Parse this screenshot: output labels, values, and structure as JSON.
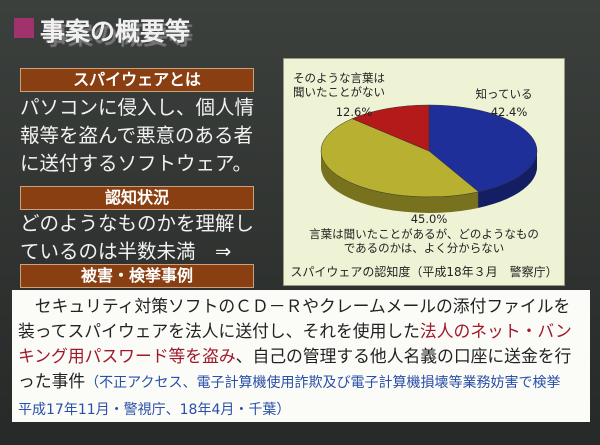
{
  "title": "事案の概要等",
  "sections": [
    {
      "heading": "スパイウェアとは",
      "text": "パソコンに侵入し、個人情報等を盗んで悪意のある者に送付するソフトウェア。"
    },
    {
      "heading": "認知状況",
      "text": "どのようなものかを理解しているのは半数未満　⇒"
    },
    {
      "heading": "被害・検挙事例"
    }
  ],
  "chart_data": {
    "type": "pie",
    "caption": "スパイウェアの認知度（平成18年３月　警察庁）",
    "categories": [
      "知っている",
      "言葉は聞いたことがあるが、どのようなもの\nであるのかは、よく分からない",
      "そのような言葉は\n聞いたことがない"
    ],
    "values": [
      42.4,
      45.0,
      12.6
    ],
    "value_labels": [
      "42.4%",
      "45.0%",
      "12.6%"
    ],
    "colors": [
      "#1f2f9a",
      "#b8b030",
      "#b51a1a"
    ]
  },
  "case": {
    "segments": [
      {
        "text": "　セキュリティ対策ソフトのＣＤ－Ｒやクレームメールの添付ファイルを装ってスパイウェアを法人に送付し、それを使用した",
        "color": "#222222"
      },
      {
        "text": "法人のネット・バンキング用パスワード等を盗み",
        "color": "#a0182a"
      },
      {
        "text": "、自己の管理する他人名義の口座に送金を行った事件",
        "color": "#222222"
      },
      {
        "text": "（不正アクセス、電子計算機使用詐欺及び電子計算機損壊等業務妨害で検挙　平成17年11月・警視庁、18年4月・千葉）",
        "color": "#2a4fa8"
      }
    ]
  }
}
